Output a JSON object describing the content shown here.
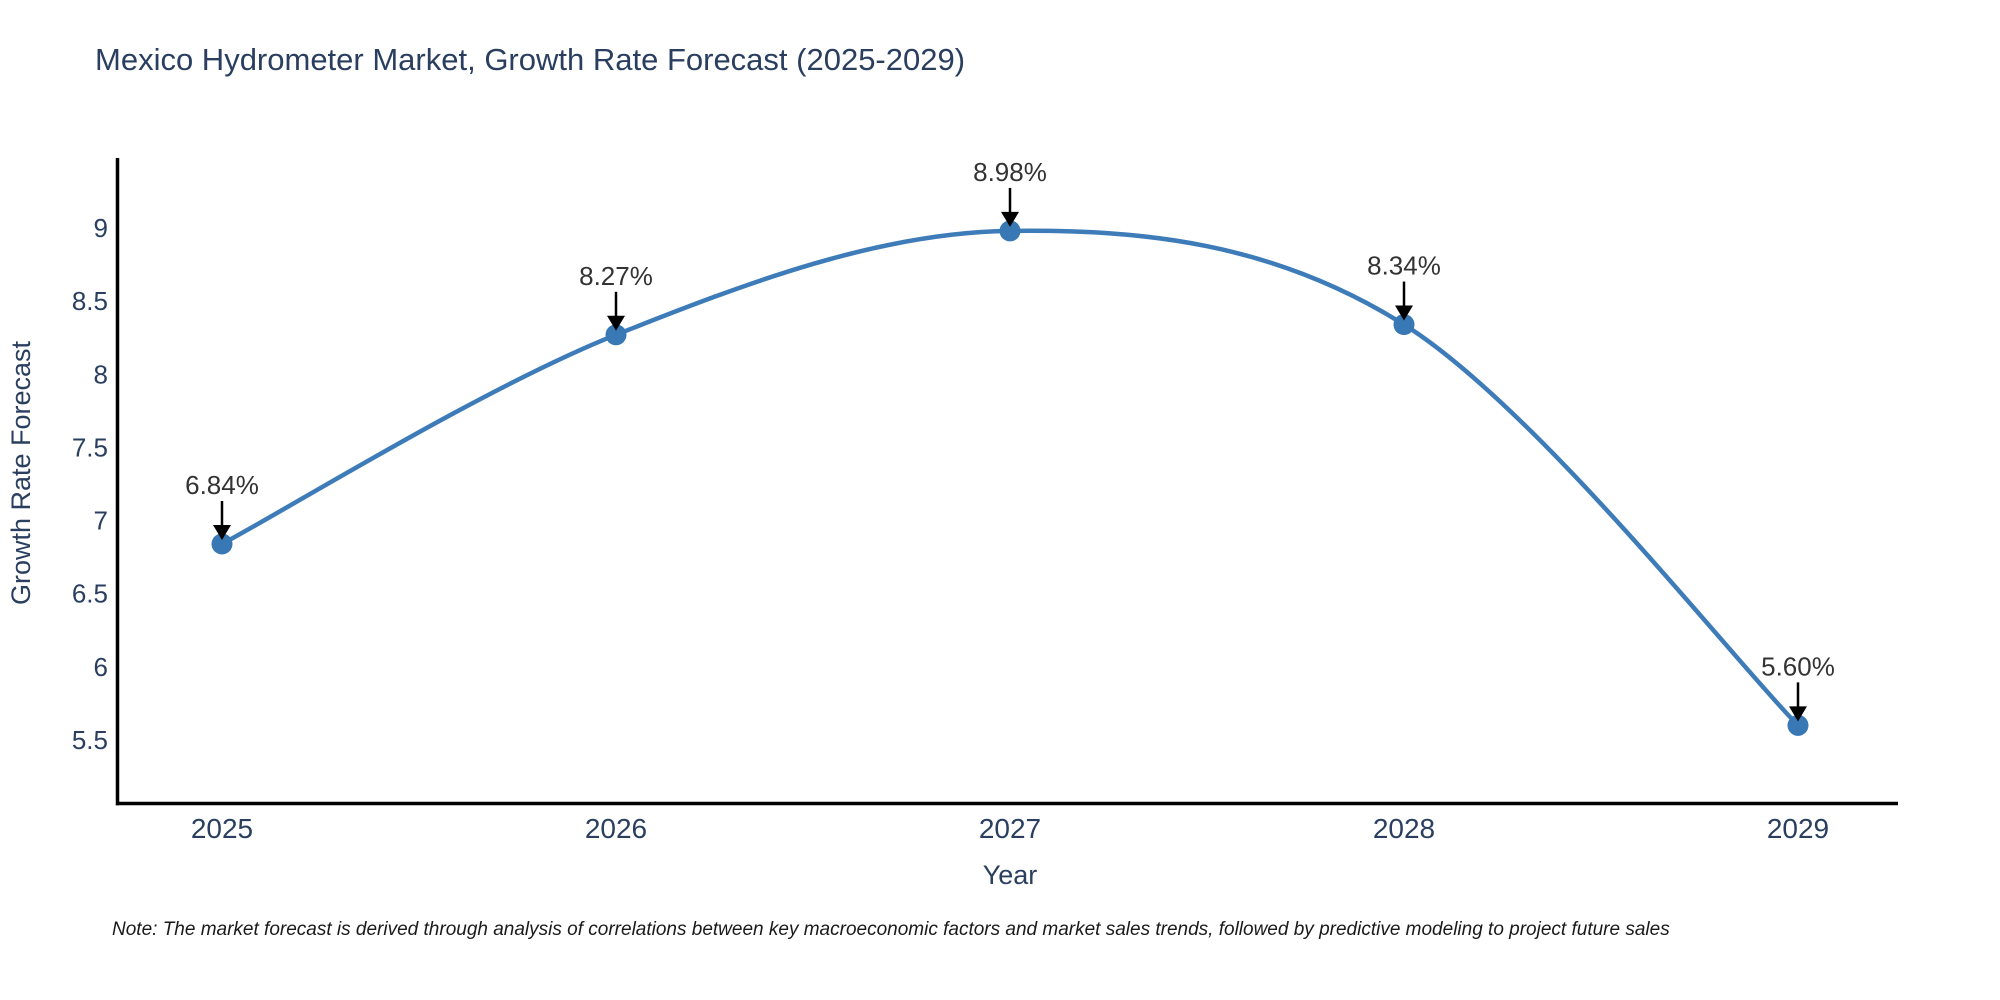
{
  "chart_data": {
    "type": "line",
    "line_shape": "spline",
    "title": "Mexico Hydrometer Market, Growth Rate Forecast (2025-2029)",
    "xlabel": "Year",
    "ylabel": "Growth Rate Forecast",
    "x": [
      2025,
      2026,
      2027,
      2028,
      2029
    ],
    "categories": [
      "2025",
      "2026",
      "2027",
      "2028",
      "2029"
    ],
    "values": [
      6.84,
      8.27,
      8.98,
      8.34,
      5.6
    ],
    "point_labels": [
      "6.84%",
      "8.27%",
      "8.98%",
      "8.34%",
      "5.60%"
    ],
    "yticks": [
      5.5,
      6,
      6.5,
      7,
      7.5,
      8,
      8.5,
      9
    ],
    "ylim": [
      5.05,
      9.47
    ],
    "xlim": [
      2024.73,
      2029.25
    ],
    "grid": false,
    "legend": "none",
    "note": "Note: The market forecast is derived through analysis of correlations between key macroeconomic factors and market sales trends, followed by predictive modeling to project future sales",
    "colors": {
      "line": "#3d7cb8",
      "marker": "#3878b4",
      "annotation_text": "#333333",
      "arrow": "#000000",
      "axis": "#000000",
      "tick_label": "#2a3f5f",
      "title": "#2a3f5f"
    }
  }
}
